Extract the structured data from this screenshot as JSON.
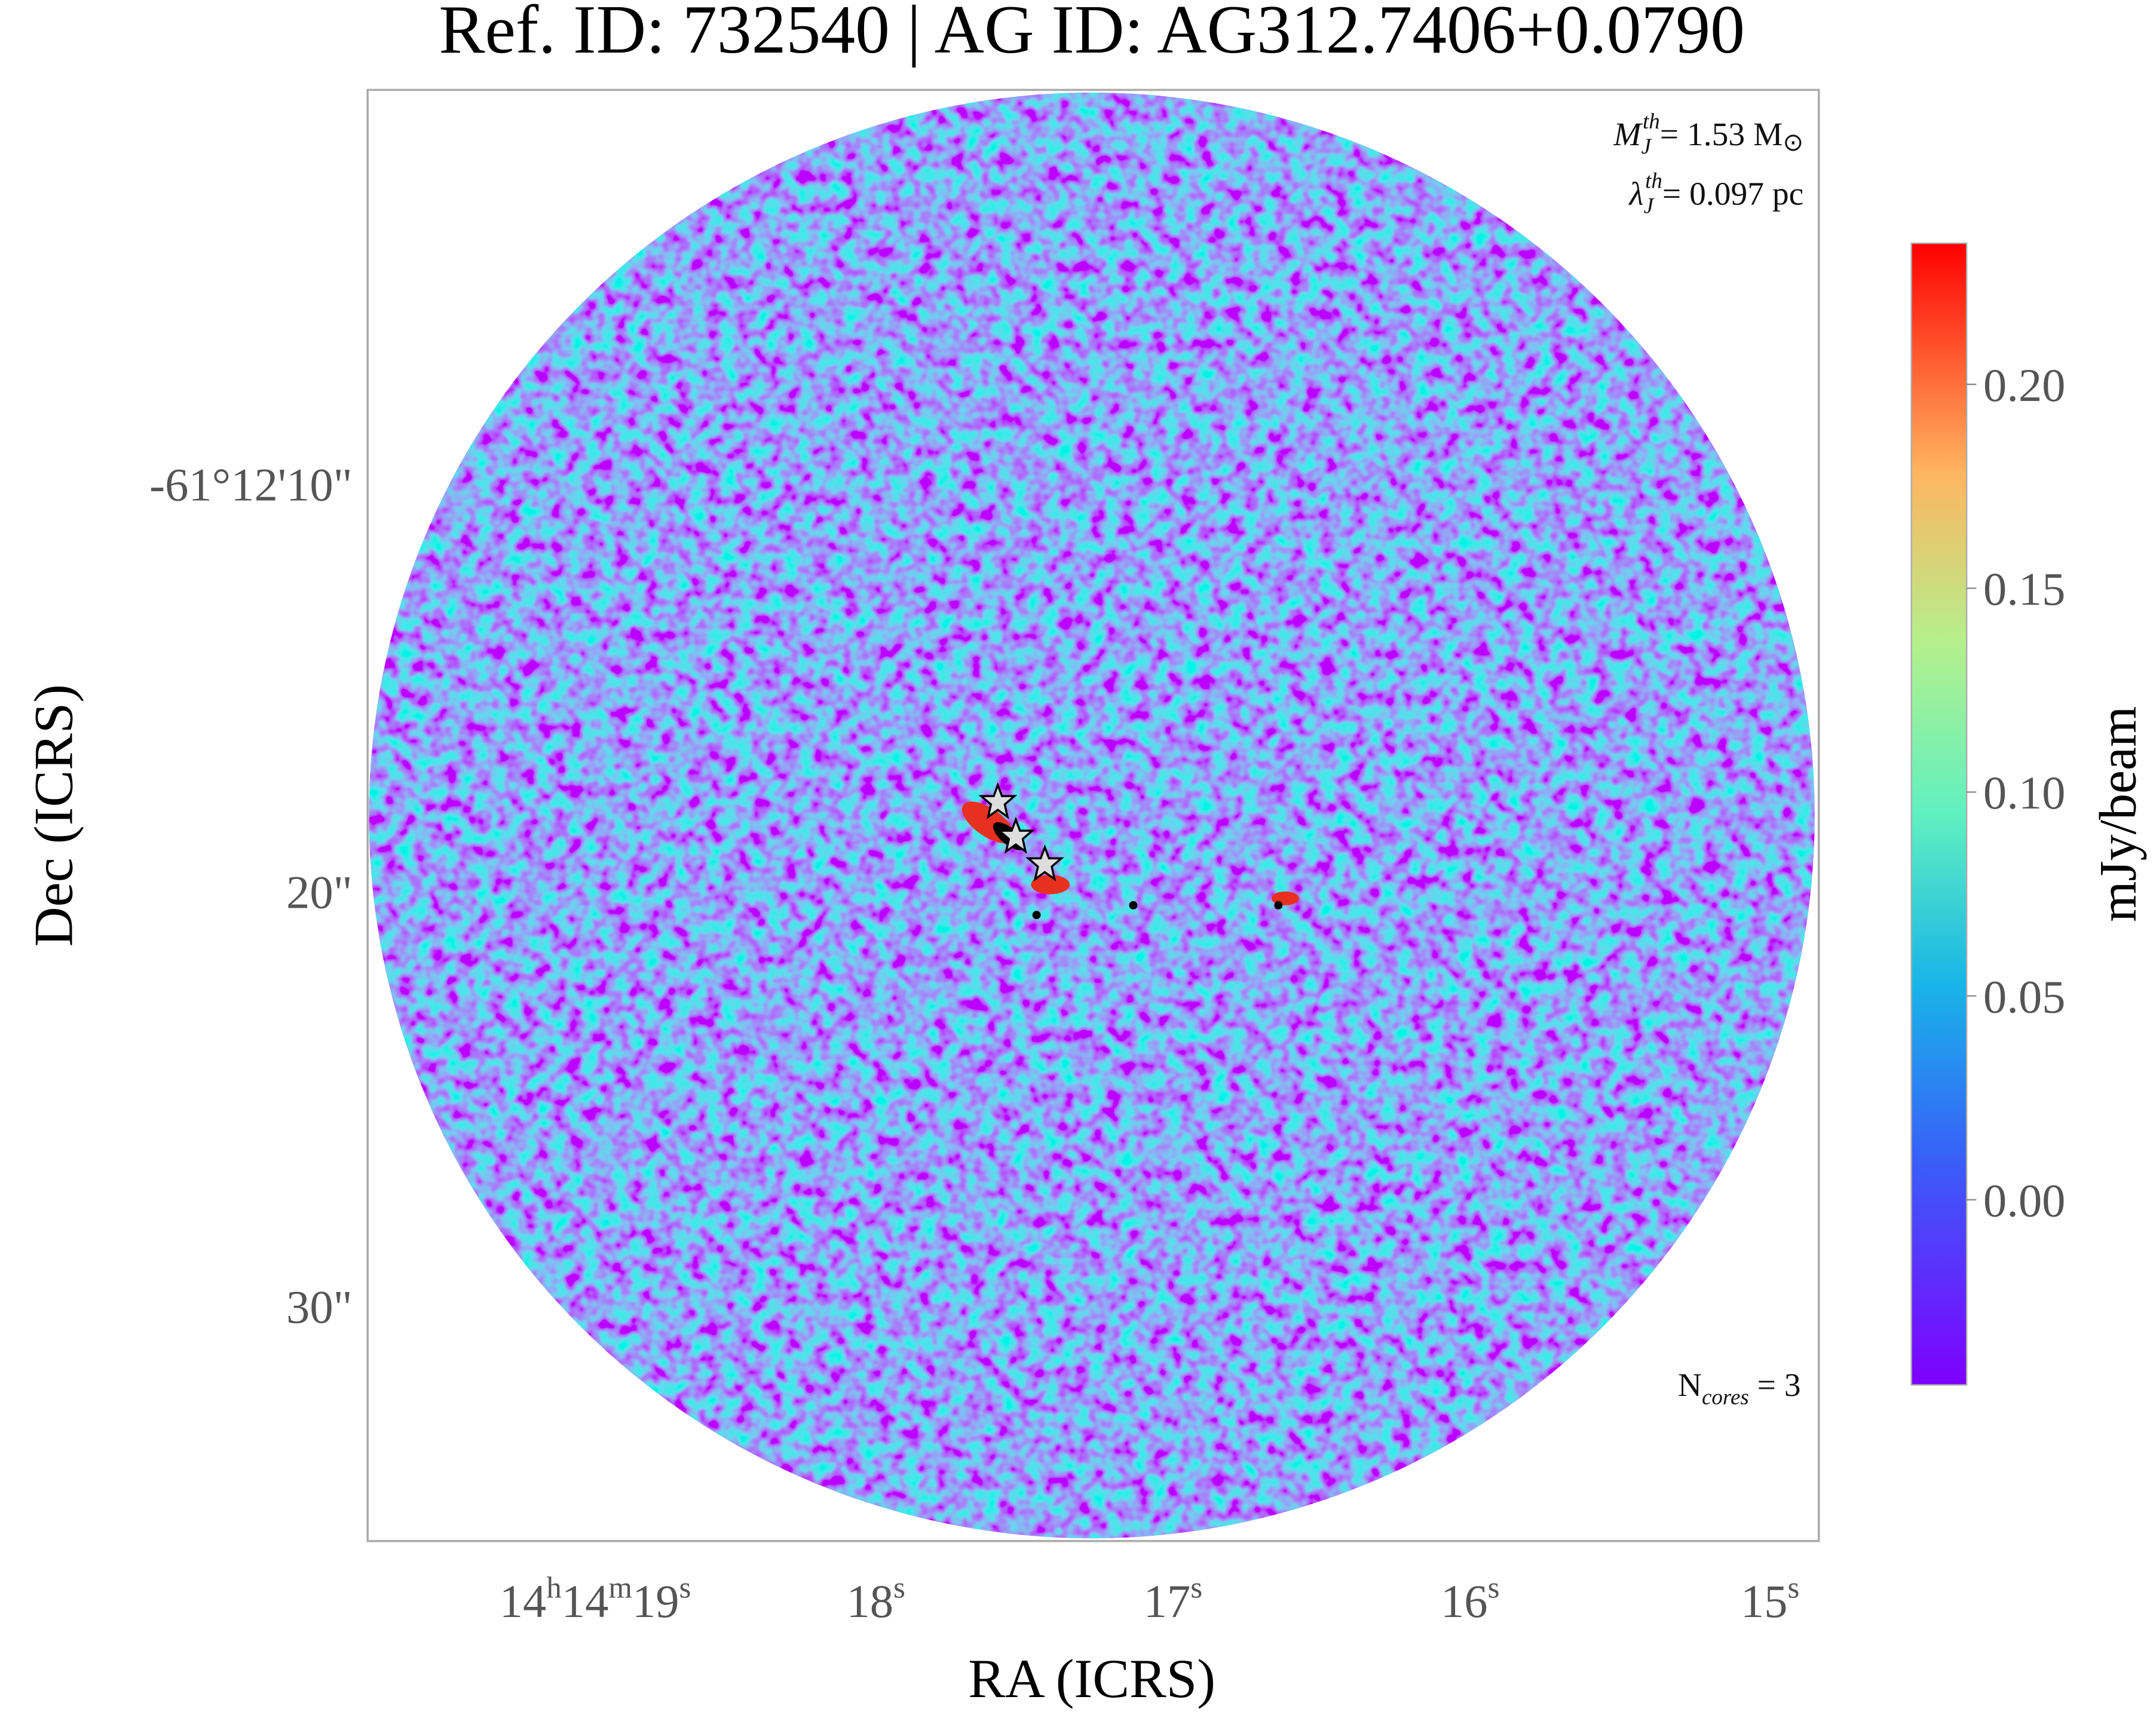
{
  "title": "Ref. ID: 732540 | AG ID: AG312.7406+0.0790",
  "x_label": "RA (ICRS)",
  "y_label": "Dec (ICRS)",
  "dec_ticks": [
    "-61°12'10\"",
    "20\"",
    "30\""
  ],
  "ra_ticks": [
    [
      "14",
      "h",
      "14",
      "m",
      "19",
      "s"
    ],
    [
      "18",
      "s"
    ],
    [
      "17",
      "s"
    ],
    [
      "16",
      "s"
    ],
    [
      "15",
      "s"
    ]
  ],
  "annotations": {
    "jeans_mass": [
      "M",
      "J",
      "th",
      "= 1.53 M",
      "⊙"
    ],
    "jeans_length": [
      "λ",
      "J",
      "th",
      "= 0.097 pc"
    ],
    "cores": [
      "N",
      "cores",
      " = 3"
    ]
  },
  "colorbar": {
    "label": "mJy/beam",
    "lim": [
      -0.0454,
      0.2346
    ],
    "ticks": [
      {
        "value": 0,
        "label": "0.00"
      },
      {
        "value": 0.05,
        "label": "0.05"
      },
      {
        "value": 0.1,
        "label": "0.10"
      },
      {
        "value": 0.15,
        "label": "0.15"
      },
      {
        "value": 0.2,
        "label": "0.20"
      }
    ]
  }
}
